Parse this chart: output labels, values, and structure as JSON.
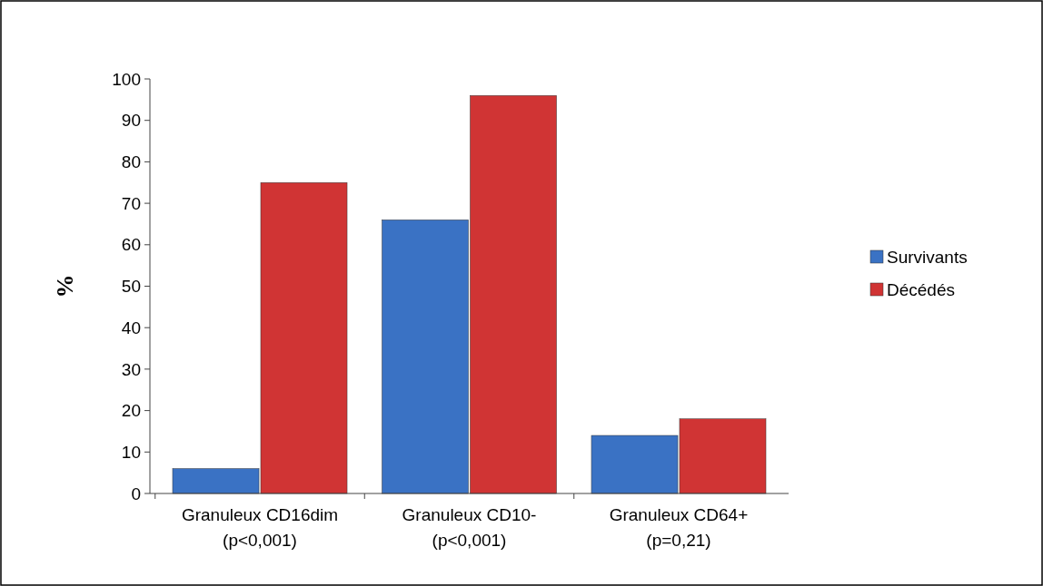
{
  "chart_data": {
    "type": "bar",
    "ylabel": "%",
    "categories": [
      "Granuleux CD16dim\n(p<0,001)",
      "Granuleux CD10-\n(p<0,001)",
      "Granuleux CD64+\n(p=0,21)"
    ],
    "series": [
      {
        "name": "Survivants",
        "color": "#3a72c4",
        "values": [
          6,
          66,
          14
        ]
      },
      {
        "name": "Décédés",
        "color": "#d03434",
        "values": [
          75,
          96,
          18
        ]
      }
    ],
    "ylim": [
      0,
      100
    ],
    "yticks": [
      0,
      10,
      20,
      30,
      40,
      50,
      60,
      70,
      80,
      90,
      100
    ],
    "grid": false,
    "legend": "right"
  }
}
